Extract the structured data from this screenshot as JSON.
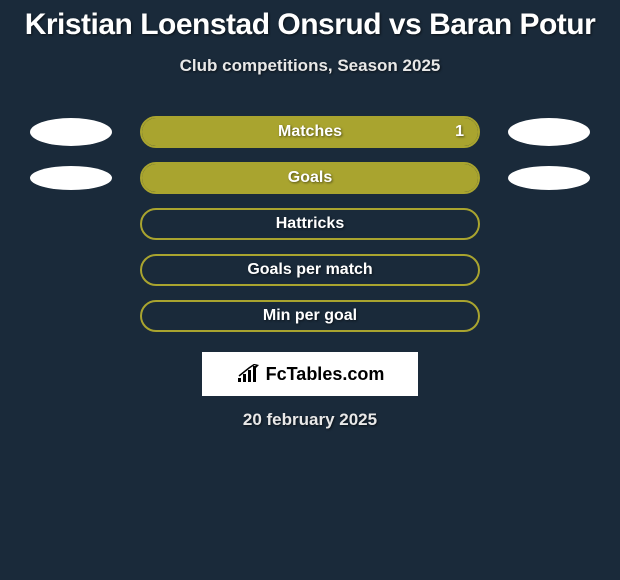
{
  "header": {
    "title": "Kristian Loenstad Onsrud vs Baran Potur",
    "subtitle": "Club competitions, Season 2025"
  },
  "colors": {
    "background": "#1a2a3a",
    "bar_fill": "#a9a42f",
    "bar_border": "#a9a42f",
    "ellipse": "#ffffff",
    "text": "#ffffff",
    "subtitle_text": "#e8e8e8"
  },
  "stats": [
    {
      "label": "Matches",
      "fill_percent": 100,
      "right_value": "1",
      "left_ellipse": {
        "width": 104,
        "height": 28
      },
      "right_ellipse": {
        "width": 104,
        "height": 28
      }
    },
    {
      "label": "Goals",
      "fill_percent": 100,
      "right_value": "",
      "left_ellipse": {
        "width": 100,
        "height": 24
      },
      "right_ellipse": {
        "width": 100,
        "height": 24
      }
    },
    {
      "label": "Hattricks",
      "fill_percent": 0,
      "right_value": "",
      "left_ellipse": null,
      "right_ellipse": null
    },
    {
      "label": "Goals per match",
      "fill_percent": 0,
      "right_value": "",
      "left_ellipse": null,
      "right_ellipse": null
    },
    {
      "label": "Min per goal",
      "fill_percent": 0,
      "right_value": "",
      "left_ellipse": null,
      "right_ellipse": null
    }
  ],
  "logo": {
    "text": "FcTables.com"
  },
  "footer": {
    "date": "20 february 2025"
  },
  "typography": {
    "title_fontsize": 30,
    "subtitle_fontsize": 17,
    "label_fontsize": 16
  }
}
